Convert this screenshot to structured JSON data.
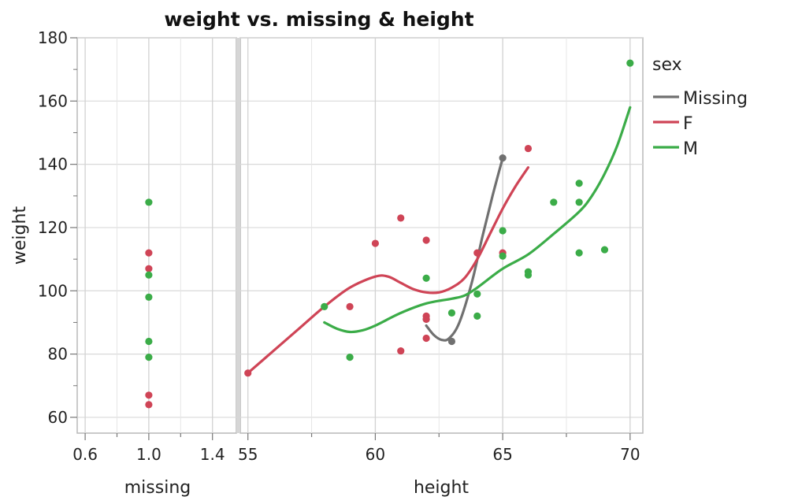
{
  "chart_data": {
    "type": "scatter",
    "title": "weight vs. missing & height",
    "ylabel": "weight",
    "ylim": [
      55,
      180
    ],
    "yticks": [
      60,
      80,
      100,
      120,
      140,
      160,
      180
    ],
    "grid": true,
    "legend": {
      "title": "sex",
      "placement": "right",
      "entries": [
        {
          "name": "Missing",
          "color": "#707070"
        },
        {
          "name": "F",
          "color": "#cf4456"
        },
        {
          "name": "M",
          "color": "#3bac48"
        }
      ]
    },
    "panels": [
      {
        "xlabel": "missing",
        "xlim": [
          0.55,
          1.55
        ],
        "xticks": [
          0.6,
          1.0,
          1.4
        ],
        "xtick_labels": [
          "0.6",
          "1.0",
          "1.4"
        ],
        "series": [
          {
            "name": "F",
            "points": [
              [
                1.0,
                112
              ],
              [
                1.0,
                107
              ],
              [
                1.0,
                67
              ],
              [
                1.0,
                64
              ]
            ]
          },
          {
            "name": "M",
            "points": [
              [
                1.0,
                128
              ],
              [
                1.0,
                105
              ],
              [
                1.0,
                98
              ],
              [
                1.0,
                84
              ],
              [
                1.0,
                79
              ]
            ]
          }
        ]
      },
      {
        "xlabel": "height",
        "xlim": [
          54.7,
          70.5
        ],
        "xticks": [
          55,
          60,
          65,
          70
        ],
        "xtick_labels": [
          "55",
          "60",
          "65",
          "70"
        ],
        "series": [
          {
            "name": "Missing",
            "points": [
              [
                62,
                91
              ],
              [
                63,
                84
              ],
              [
                65,
                142
              ]
            ],
            "smoother": [
              [
                62,
                89
              ],
              [
                62.3,
                86
              ],
              [
                62.6,
                84.5
              ],
              [
                62.9,
                85
              ],
              [
                63.3,
                90
              ],
              [
                63.8,
                103
              ],
              [
                64.2,
                117
              ],
              [
                64.6,
                130
              ],
              [
                65,
                142
              ]
            ]
          },
          {
            "name": "F",
            "points": [
              [
                55,
                74
              ],
              [
                59,
                95
              ],
              [
                60,
                115
              ],
              [
                61,
                123
              ],
              [
                61,
                81
              ],
              [
                62,
                116
              ],
              [
                62,
                92
              ],
              [
                62,
                91
              ],
              [
                62,
                85
              ],
              [
                64,
                112
              ],
              [
                65,
                112
              ],
              [
                66,
                145
              ]
            ],
            "smoother": [
              [
                55,
                74
              ],
              [
                56,
                81
              ],
              [
                57,
                88
              ],
              [
                58,
                95
              ],
              [
                59,
                101
              ],
              [
                60,
                104.5
              ],
              [
                60.5,
                104.5
              ],
              [
                61,
                102.5
              ],
              [
                61.5,
                100.5
              ],
              [
                62,
                99.5
              ],
              [
                62.5,
                99.5
              ],
              [
                63,
                101
              ],
              [
                63.5,
                104
              ],
              [
                64,
                110
              ],
              [
                64.5,
                118
              ],
              [
                65,
                126
              ],
              [
                65.5,
                133
              ],
              [
                66,
                139
              ]
            ]
          },
          {
            "name": "M",
            "points": [
              [
                58,
                95
              ],
              [
                59,
                79
              ],
              [
                62,
                104
              ],
              [
                63,
                93
              ],
              [
                64,
                99
              ],
              [
                64,
                92
              ],
              [
                65,
                119
              ],
              [
                65,
                111
              ],
              [
                66,
                106
              ],
              [
                66,
                105
              ],
              [
                67,
                128
              ],
              [
                68,
                134
              ],
              [
                68,
                128
              ],
              [
                68,
                112
              ],
              [
                69,
                113
              ],
              [
                70,
                172
              ]
            ],
            "smoother": [
              [
                58,
                90
              ],
              [
                58.5,
                88
              ],
              [
                59,
                87
              ],
              [
                59.5,
                87.5
              ],
              [
                60,
                89
              ],
              [
                61,
                93
              ],
              [
                62,
                96
              ],
              [
                63,
                97.5
              ],
              [
                63.5,
                98.5
              ],
              [
                64,
                101
              ],
              [
                65,
                107
              ],
              [
                66,
                111.5
              ],
              [
                67,
                118
              ],
              [
                68,
                125
              ],
              [
                68.5,
                130
              ],
              [
                69,
                137
              ],
              [
                69.5,
                146
              ],
              [
                70,
                158
              ]
            ]
          }
        ]
      }
    ]
  }
}
